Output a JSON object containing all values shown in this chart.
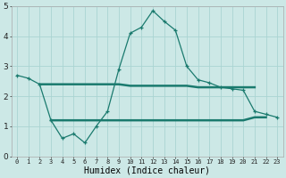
{
  "x": [
    0,
    1,
    2,
    3,
    4,
    5,
    6,
    7,
    8,
    9,
    10,
    11,
    12,
    13,
    14,
    15,
    16,
    17,
    18,
    19,
    20,
    21,
    22,
    23
  ],
  "line_main": [
    2.7,
    2.6,
    2.4,
    1.2,
    0.6,
    0.75,
    0.45,
    1.0,
    1.5,
    2.9,
    4.1,
    4.3,
    4.85,
    4.5,
    4.2,
    3.0,
    2.55,
    2.45,
    2.3,
    2.25,
    2.2,
    1.5,
    1.4,
    1.3
  ],
  "x_avg_high": [
    2,
    3,
    4,
    5,
    6,
    7,
    8,
    9,
    10,
    11,
    12,
    13,
    14,
    15,
    16,
    17,
    18,
    19,
    20,
    21
  ],
  "y_avg_high": [
    2.4,
    2.4,
    2.4,
    2.4,
    2.4,
    2.4,
    2.4,
    2.4,
    2.35,
    2.35,
    2.35,
    2.35,
    2.35,
    2.35,
    2.3,
    2.3,
    2.3,
    2.3,
    2.3,
    2.3
  ],
  "x_avg_low": [
    3,
    4,
    5,
    6,
    7,
    8,
    9,
    10,
    11,
    12,
    13,
    14,
    15,
    16,
    17,
    18,
    19,
    20,
    21,
    22
  ],
  "y_avg_low": [
    1.2,
    1.2,
    1.2,
    1.2,
    1.2,
    1.2,
    1.2,
    1.2,
    1.2,
    1.2,
    1.2,
    1.2,
    1.2,
    1.2,
    1.2,
    1.2,
    1.2,
    1.2,
    1.3,
    1.3
  ],
  "color_main": "#1a7a6e",
  "bg_color": "#cce8e6",
  "grid_color": "#aad4d2",
  "xlabel": "Humidex (Indice chaleur)",
  "ylim": [
    0,
    5
  ],
  "xlim": [
    -0.5,
    23.5
  ],
  "yticks": [
    0,
    1,
    2,
    3,
    4,
    5
  ],
  "xtick_labels": [
    "0",
    "1",
    "2",
    "3",
    "4",
    "5",
    "6",
    "7",
    "8",
    "9",
    "10",
    "11",
    "12",
    "13",
    "14",
    "15",
    "16",
    "17",
    "18",
    "19",
    "20",
    "21",
    "22",
    "23"
  ]
}
